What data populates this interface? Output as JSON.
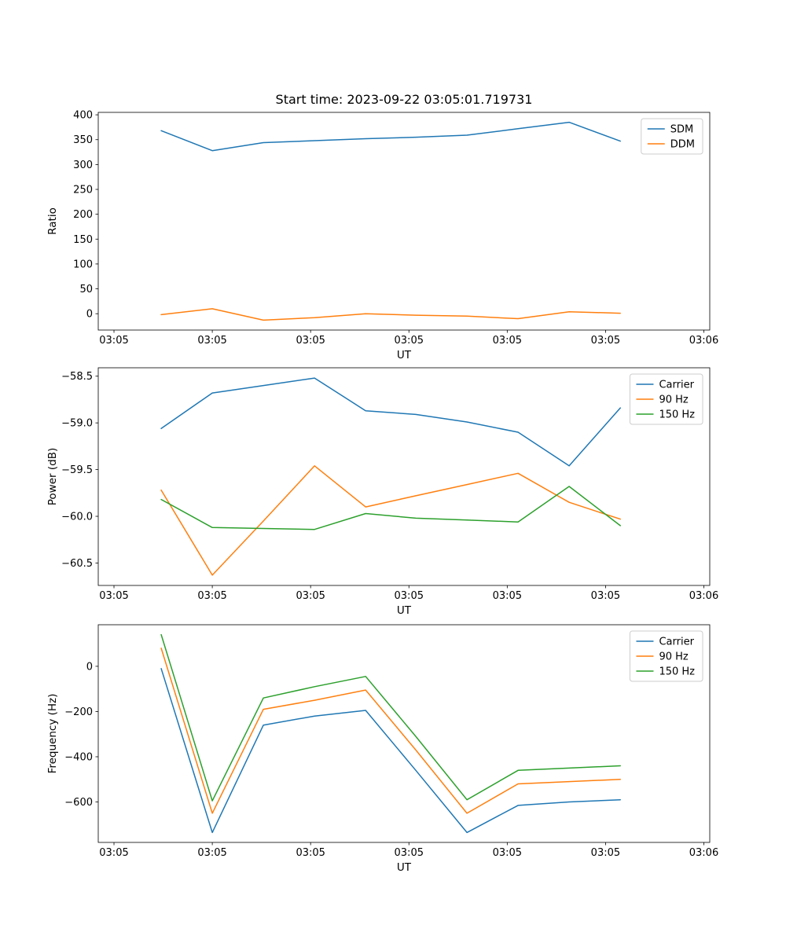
{
  "figure_title": "Start time: 2023-09-22 03:05:01.719731",
  "chart_data": [
    {
      "type": "line",
      "title": "Start time: 2023-09-22 03:05:01.719731",
      "xlabel": "UT",
      "ylabel": "Ratio",
      "x_note": "seconds after 03:05:00 UT, estimated",
      "x": [
        4.8,
        10.0,
        15.2,
        20.4,
        25.6,
        30.7,
        35.9,
        41.1,
        46.3,
        51.5
      ],
      "xlim": [
        -1.6,
        60.6
      ],
      "ylim": [
        -32.9,
        404.9
      ],
      "grid": false,
      "legend_position": "upper right",
      "xticks": {
        "values": [
          0,
          10,
          20,
          30,
          40,
          50,
          60
        ],
        "labels": [
          "03:05",
          "03:05",
          "03:05",
          "03:05",
          "03:05",
          "03:05",
          "03:06"
        ]
      },
      "yticks": {
        "values": [
          0,
          50,
          100,
          150,
          200,
          250,
          300,
          350,
          400
        ],
        "labels": [
          "0",
          "50",
          "100",
          "150",
          "200",
          "250",
          "300",
          "350",
          "400"
        ]
      },
      "series": [
        {
          "name": "SDM",
          "color": "#1f77b4",
          "values": [
            368,
            328,
            344,
            348,
            352,
            355,
            359,
            372,
            385,
            347
          ]
        },
        {
          "name": "DDM",
          "color": "#ff7f0e",
          "values": [
            -2,
            10,
            -13,
            -8,
            0,
            -3,
            -5,
            -10,
            4,
            1
          ]
        }
      ]
    },
    {
      "type": "line",
      "title": "",
      "xlabel": "UT",
      "ylabel": "Power (dB)",
      "x": [
        4.8,
        10.0,
        15.2,
        20.4,
        25.6,
        30.7,
        35.9,
        41.1,
        46.3,
        51.5
      ],
      "xlim": [
        -1.6,
        60.6
      ],
      "ylim": [
        -60.74,
        -58.41
      ],
      "grid": false,
      "legend_position": "upper right",
      "xticks": {
        "values": [
          0,
          10,
          20,
          30,
          40,
          50,
          60
        ],
        "labels": [
          "03:05",
          "03:05",
          "03:05",
          "03:05",
          "03:05",
          "03:05",
          "03:06"
        ]
      },
      "yticks": {
        "values": [
          -58.5,
          -59.0,
          -59.5,
          -60.0,
          -60.5
        ],
        "labels": [
          "−58.5",
          "−59.0",
          "−59.5",
          "−60.0",
          "−60.5"
        ]
      },
      "series": [
        {
          "name": "Carrier",
          "color": "#1f77b4",
          "values": [
            -59.06,
            -58.68,
            -58.6,
            -58.52,
            -58.87,
            -58.91,
            -58.99,
            -59.1,
            -59.46,
            -58.84
          ]
        },
        {
          "name": "90 Hz",
          "color": "#ff7f0e",
          "values": [
            -59.72,
            -60.63,
            -60.05,
            -59.46,
            -59.9,
            -59.78,
            -59.66,
            -59.54,
            -59.85,
            -60.03
          ]
        },
        {
          "name": "150 Hz",
          "color": "#2ca02c",
          "values": [
            -59.82,
            -60.12,
            -60.13,
            -60.14,
            -59.97,
            -60.02,
            -60.04,
            -60.06,
            -59.68,
            -60.1
          ]
        }
      ]
    },
    {
      "type": "line",
      "title": "",
      "xlabel": "UT",
      "ylabel": "Frequency (Hz)",
      "x": [
        4.8,
        10.0,
        15.2,
        20.4,
        25.6,
        30.7,
        35.9,
        41.1,
        46.3,
        51.5
      ],
      "xlim": [
        -1.6,
        60.6
      ],
      "ylim": [
        -778.8,
        183.8
      ],
      "grid": false,
      "legend_position": "upper right",
      "xticks": {
        "values": [
          0,
          10,
          20,
          30,
          40,
          50,
          60
        ],
        "labels": [
          "03:05",
          "03:05",
          "03:05",
          "03:05",
          "03:05",
          "03:05",
          "03:06"
        ]
      },
      "yticks": {
        "values": [
          0,
          -200,
          -400,
          -600
        ],
        "labels": [
          "0",
          "−200",
          "−400",
          "−600"
        ]
      },
      "series": [
        {
          "name": "Carrier",
          "color": "#1f77b4",
          "values": [
            -10,
            -735,
            -260,
            -220,
            -195,
            -460,
            -735,
            -615,
            -600,
            -590
          ]
        },
        {
          "name": "90 Hz",
          "color": "#ff7f0e",
          "values": [
            80,
            -650,
            -190,
            -150,
            -105,
            -370,
            -650,
            -520,
            -510,
            -500
          ]
        },
        {
          "name": "150 Hz",
          "color": "#2ca02c",
          "values": [
            140,
            -595,
            -140,
            -90,
            -45,
            -310,
            -590,
            -460,
            -450,
            -440
          ]
        }
      ]
    }
  ]
}
